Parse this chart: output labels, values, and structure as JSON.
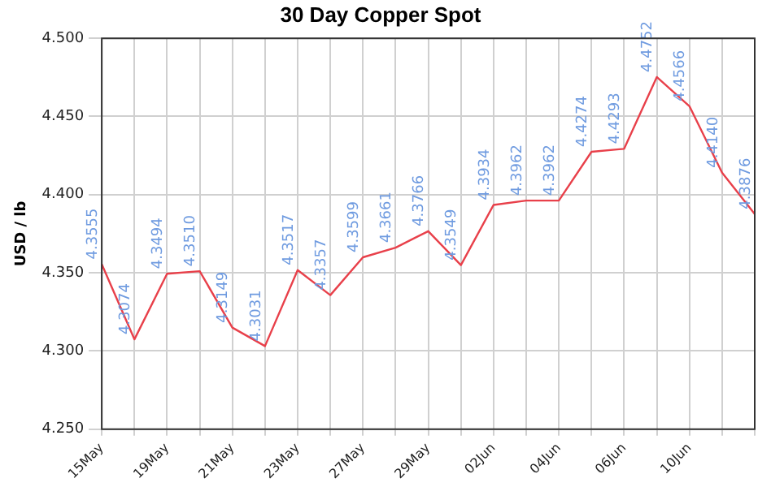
{
  "chart_data": {
    "type": "line",
    "title": "30 Day Copper Spot",
    "ylabel": "USD / lb",
    "categories": [
      "15May",
      null,
      "19May",
      null,
      "21May",
      null,
      "23May",
      null,
      "27May",
      null,
      "29May",
      null,
      "02Jun",
      null,
      "04Jun",
      null,
      "06Jun",
      null,
      "10Jun",
      null,
      null
    ],
    "series": [
      {
        "color": "#e8404a",
        "values": [
          4.3555,
          4.3074,
          4.3494,
          4.351,
          4.3149,
          4.3031,
          4.3517,
          4.3357,
          4.3599,
          4.3661,
          4.3766,
          4.3549,
          4.3934,
          4.3962,
          4.3962,
          4.4274,
          4.4293,
          4.4752,
          4.4566,
          4.414,
          4.3876
        ]
      }
    ],
    "ylim": [
      4.25,
      4.5
    ],
    "yticks": [
      {
        "value": 4.25,
        "label": "4.250"
      },
      {
        "value": 4.3,
        "label": "4.300"
      },
      {
        "value": 4.35,
        "label": "4.350"
      },
      {
        "value": 4.4,
        "label": "4.400"
      },
      {
        "value": 4.45,
        "label": "4.450"
      },
      {
        "value": 4.5,
        "label": "4.500"
      }
    ],
    "value_labels": [
      "4.3555",
      "4.3074",
      "4.3494",
      "4.3510",
      "4.3149",
      "4.3031",
      "4.3517",
      "4.3357",
      "4.3599",
      "4.3661",
      "4.3766",
      "4.3549",
      "4.3934",
      "4.3962",
      "4.3962",
      "4.4274",
      "4.4293",
      "4.4752",
      "4.4566",
      "4.4140",
      "4.3876"
    ],
    "grid": true,
    "legend": false,
    "marker": "none",
    "line_style": "solid"
  }
}
